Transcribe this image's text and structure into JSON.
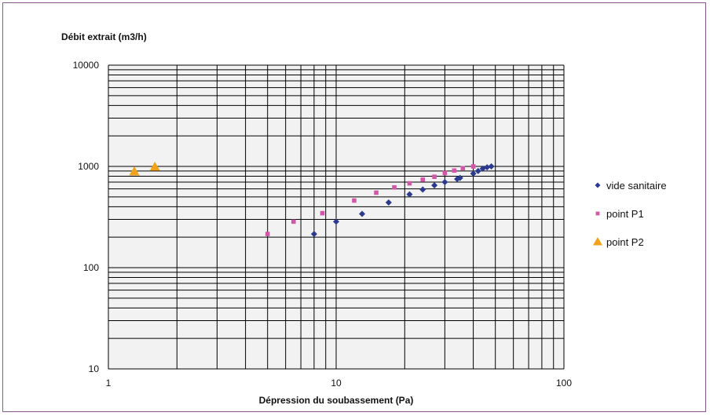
{
  "chart_data": {
    "type": "scatter",
    "ylabel": "Débit extrait (m3/h)",
    "xlabel": "Dépression du soubassement (Pa)",
    "x_scale": "log",
    "y_scale": "log",
    "xlim": [
      1,
      100
    ],
    "ylim": [
      10,
      10000
    ],
    "x_ticks": [
      "1",
      "10",
      "100"
    ],
    "y_ticks": [
      "10",
      "100",
      "1000",
      "10000"
    ],
    "grid": true,
    "legend_position": "right",
    "series": [
      {
        "name": "vide sanitaire",
        "marker": "diamond",
        "color": "#2b3a8f",
        "points": [
          [
            8,
            215
          ],
          [
            10,
            285
          ],
          [
            13,
            340
          ],
          [
            17,
            440
          ],
          [
            21,
            530
          ],
          [
            24,
            590
          ],
          [
            27,
            650
          ],
          [
            30,
            700
          ],
          [
            34,
            750
          ],
          [
            35,
            770
          ],
          [
            40,
            850
          ],
          [
            42,
            900
          ],
          [
            44,
            950
          ],
          [
            46,
            980
          ],
          [
            48,
            1000
          ]
        ]
      },
      {
        "name": "point P1",
        "marker": "square",
        "color": "#d257a9",
        "points": [
          [
            5,
            215
          ],
          [
            6.5,
            285
          ],
          [
            8.7,
            345
          ],
          [
            12,
            460
          ],
          [
            15,
            550
          ],
          [
            18,
            620
          ],
          [
            21,
            680
          ],
          [
            24,
            740
          ],
          [
            27,
            790
          ],
          [
            30,
            860
          ],
          [
            33,
            910
          ],
          [
            36,
            960
          ],
          [
            40,
            1000
          ]
        ]
      },
      {
        "name": "point P2",
        "marker": "triangle",
        "color": "#f0a21a",
        "points": [
          [
            1.3,
            890
          ],
          [
            1.6,
            990
          ]
        ]
      }
    ]
  }
}
